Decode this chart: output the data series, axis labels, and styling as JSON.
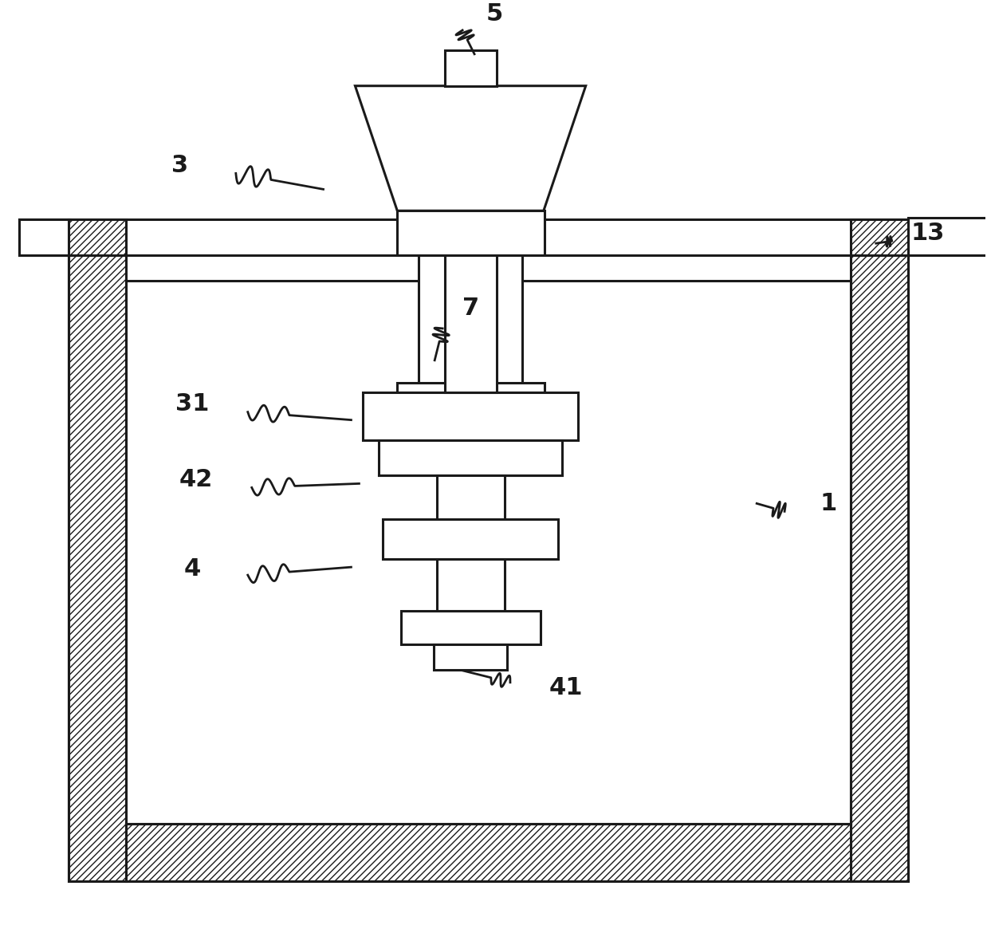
{
  "bg_color": "#ffffff",
  "line_color": "#1a1a1a",
  "label_color": "#1a1a1a",
  "figsize": [
    12.38,
    11.7
  ],
  "dpi": 100,
  "lw": 2.2,
  "hatch": "////",
  "label_fontsize": 22
}
